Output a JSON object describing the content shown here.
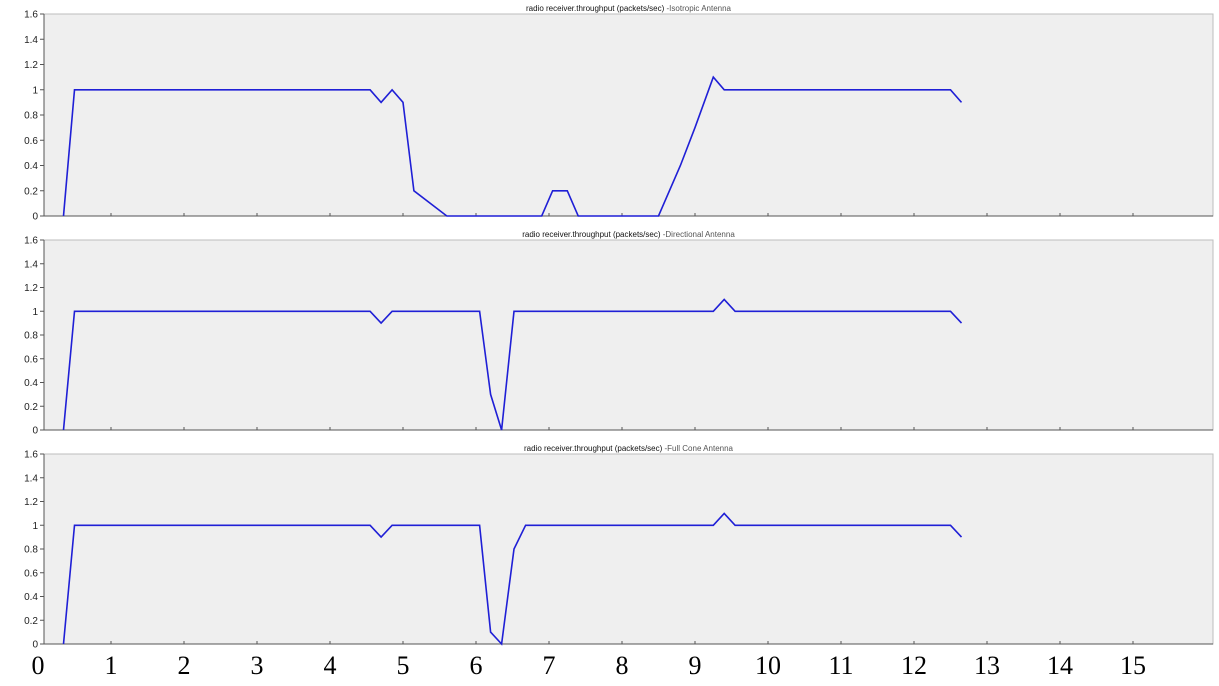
{
  "chart_data": [
    {
      "type": "line",
      "title": "radio receiver.throughput (packets/sec)",
      "subtitle": "-Isotropic Antenna",
      "ylim": [
        0,
        1.6
      ],
      "yticks": [
        "0",
        "0.2",
        "0.4",
        "0.6",
        "0.8",
        "1",
        "1.2",
        "1.4",
        "1.6"
      ],
      "color": "#1f1fd6",
      "x": [
        0.35,
        0.5,
        4.55,
        4.7,
        4.85,
        5.0,
        5.15,
        5.6,
        6.9,
        7.05,
        7.25,
        7.4,
        8.5,
        8.8,
        9.0,
        9.25,
        9.4,
        12.5,
        12.65
      ],
      "values": [
        0,
        1.0,
        1.0,
        0.9,
        1.0,
        0.9,
        0.2,
        0,
        0,
        0.2,
        0.2,
        0,
        0,
        0.4,
        0.7,
        1.1,
        1.0,
        1.0,
        0.9
      ]
    },
    {
      "type": "line",
      "title": "radio receiver.throughput (packets/sec)",
      "subtitle": "-Directional  Antenna",
      "ylim": [
        0,
        1.6
      ],
      "yticks": [
        "0",
        "0.2",
        "0.4",
        "0.6",
        "0.8",
        "1",
        "1.2",
        "1.4",
        "1.6"
      ],
      "color": "#1f1fd6",
      "x": [
        0.35,
        0.5,
        4.55,
        4.7,
        4.85,
        6.05,
        6.2,
        6.35,
        6.52,
        9.25,
        9.4,
        9.55,
        12.5,
        12.65
      ],
      "values": [
        0,
        1.0,
        1.0,
        0.9,
        1.0,
        1.0,
        0.3,
        0,
        1.0,
        1.0,
        1.1,
        1.0,
        1.0,
        0.9
      ]
    },
    {
      "type": "line",
      "title": "radio receiver.throughput (packets/sec)",
      "subtitle": "-Full Cone Antenna",
      "ylim": [
        0,
        1.6
      ],
      "yticks": [
        "0",
        "0.2",
        "0.4",
        "0.6",
        "0.8",
        "1",
        "1.2",
        "1.4",
        "1.6"
      ],
      "color": "#1f1fd6",
      "x": [
        0.35,
        0.5,
        4.55,
        4.7,
        4.85,
        6.05,
        6.2,
        6.35,
        6.52,
        6.68,
        9.25,
        9.4,
        9.55,
        12.5,
        12.65
      ],
      "values": [
        0,
        1.0,
        1.0,
        0.9,
        1.0,
        1.0,
        0.1,
        0,
        0.8,
        1.0,
        1.0,
        1.1,
        1.0,
        1.0,
        0.9
      ]
    }
  ],
  "x_axis": {
    "ticks": [
      "0",
      "1",
      "2",
      "3",
      "4",
      "5",
      "6",
      "7",
      "8",
      "9",
      "10",
      "11",
      "12",
      "13",
      "14",
      "15"
    ],
    "range": [
      0,
      16
    ]
  },
  "style": {
    "plot_bg": "#efefef",
    "line_color": "#1f1fd6",
    "axis_color": "#555555",
    "title_color": "#111111",
    "subtitle_color": "#555555"
  }
}
